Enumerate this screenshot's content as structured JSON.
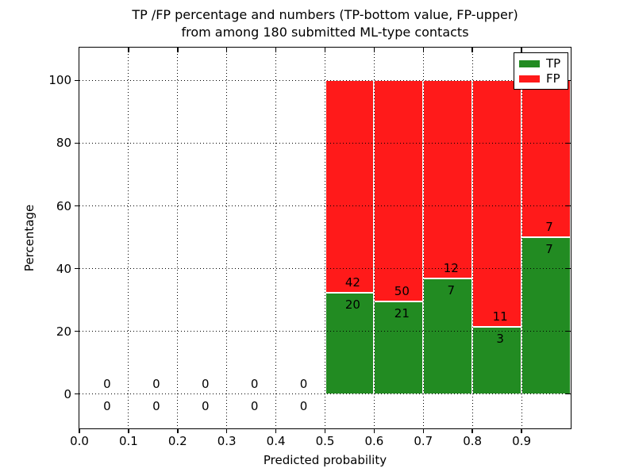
{
  "chart_data": {
    "type": "bar",
    "stacked": true,
    "unit": "percent",
    "title_line1": "TP /FP percentage and numbers (TP-bottom value, FP-upper)",
    "title_line2": "from among 180 submitted ML-type contacts",
    "xlabel": "Predicted probability",
    "ylabel": "Percentage",
    "xlim": [
      0.0,
      1.0
    ],
    "ylim": [
      -11,
      110.5
    ],
    "x_tick_labels": [
      "0.0",
      "0.1",
      "0.2",
      "0.3",
      "0.4",
      "0.5",
      "0.6",
      "0.7",
      "0.8",
      "0.9"
    ],
    "x_tick_values": [
      0.0,
      0.1,
      0.2,
      0.3,
      0.4,
      0.5,
      0.6,
      0.7,
      0.8,
      0.9
    ],
    "y_tick_labels": [
      "0",
      "20",
      "40",
      "60",
      "80",
      "100"
    ],
    "y_tick_values": [
      0,
      20,
      40,
      60,
      80,
      100
    ],
    "grid": {
      "enabled": true,
      "linestyle": "dotted",
      "color": "#000000"
    },
    "legend": {
      "position": "upper-right",
      "entries": [
        {
          "label": "TP",
          "color": "#228b22"
        },
        {
          "label": "FP",
          "color": "#ff1a1a"
        }
      ]
    },
    "colors": {
      "tp": "#228b22",
      "fp": "#ff1a1a"
    },
    "bins": [
      {
        "range": [
          0.0,
          0.1
        ],
        "tp": 0,
        "fp": 0,
        "tp_pct": 0,
        "fp_pct": 0
      },
      {
        "range": [
          0.1,
          0.2
        ],
        "tp": 0,
        "fp": 0,
        "tp_pct": 0,
        "fp_pct": 0
      },
      {
        "range": [
          0.2,
          0.3
        ],
        "tp": 0,
        "fp": 0,
        "tp_pct": 0,
        "fp_pct": 0
      },
      {
        "range": [
          0.3,
          0.4
        ],
        "tp": 0,
        "fp": 0,
        "tp_pct": 0,
        "fp_pct": 0
      },
      {
        "range": [
          0.4,
          0.5
        ],
        "tp": 0,
        "fp": 0,
        "tp_pct": 0,
        "fp_pct": 0
      },
      {
        "range": [
          0.5,
          0.6
        ],
        "tp": 20,
        "fp": 42,
        "tp_pct": 32.3,
        "fp_pct": 67.7
      },
      {
        "range": [
          0.6,
          0.7
        ],
        "tp": 21,
        "fp": 50,
        "tp_pct": 29.6,
        "fp_pct": 70.4
      },
      {
        "range": [
          0.7,
          0.8
        ],
        "tp": 7,
        "fp": 12,
        "tp_pct": 36.8,
        "fp_pct": 63.2
      },
      {
        "range": [
          0.8,
          0.9
        ],
        "tp": 3,
        "fp": 11,
        "tp_pct": 21.4,
        "fp_pct": 78.6
      },
      {
        "range": [
          0.9,
          1.0
        ],
        "tp": 7,
        "fp": 7,
        "tp_pct": 50.0,
        "fp_pct": 50.0
      }
    ]
  }
}
